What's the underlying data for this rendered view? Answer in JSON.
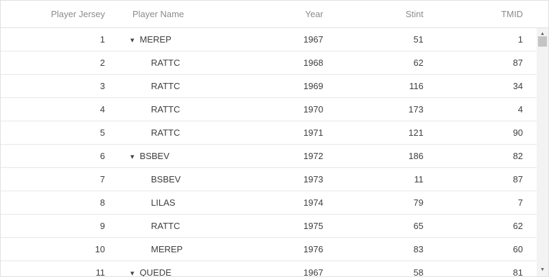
{
  "grid": {
    "columns": [
      {
        "id": "player_jersey",
        "label": "Player Jersey",
        "align": "right"
      },
      {
        "id": "player_name",
        "label": "Player Name",
        "align": "left"
      },
      {
        "id": "year",
        "label": "Year",
        "align": "right"
      },
      {
        "id": "stint",
        "label": "Stint",
        "align": "right"
      },
      {
        "id": "tmid",
        "label": "TMID",
        "align": "right"
      }
    ],
    "rows": [
      {
        "player_jersey": "1",
        "player_name": "MEREP",
        "expandable": true,
        "year": "1967",
        "stint": "51",
        "tmid": "1"
      },
      {
        "player_jersey": "2",
        "player_name": "RATTC",
        "expandable": false,
        "year": "1968",
        "stint": "62",
        "tmid": "87"
      },
      {
        "player_jersey": "3",
        "player_name": "RATTC",
        "expandable": false,
        "year": "1969",
        "stint": "116",
        "tmid": "34"
      },
      {
        "player_jersey": "4",
        "player_name": "RATTC",
        "expandable": false,
        "year": "1970",
        "stint": "173",
        "tmid": "4"
      },
      {
        "player_jersey": "5",
        "player_name": "RATTC",
        "expandable": false,
        "year": "1971",
        "stint": "121",
        "tmid": "90"
      },
      {
        "player_jersey": "6",
        "player_name": "BSBEV",
        "expandable": true,
        "year": "1972",
        "stint": "186",
        "tmid": "82"
      },
      {
        "player_jersey": "7",
        "player_name": "BSBEV",
        "expandable": false,
        "year": "1973",
        "stint": "11",
        "tmid": "87"
      },
      {
        "player_jersey": "8",
        "player_name": "LILAS",
        "expandable": false,
        "year": "1974",
        "stint": "79",
        "tmid": "7"
      },
      {
        "player_jersey": "9",
        "player_name": "RATTC",
        "expandable": false,
        "year": "1975",
        "stint": "65",
        "tmid": "62"
      },
      {
        "player_jersey": "10",
        "player_name": "MEREP",
        "expandable": false,
        "year": "1976",
        "stint": "83",
        "tmid": "60"
      },
      {
        "player_jersey": "11",
        "player_name": "QUEDE",
        "expandable": true,
        "year": "1967",
        "stint": "58",
        "tmid": "81"
      }
    ]
  },
  "icons": {
    "expand_arrow": "▾",
    "scroll_up": "▲",
    "scroll_down": "▼"
  },
  "colors": {
    "header_text": "#8b8b8b",
    "cell_text": "#3d3d3d",
    "border": "#e0e0e0",
    "scrollbar_track": "#f3f3f3",
    "scrollbar_thumb": "#c4c4c4"
  }
}
